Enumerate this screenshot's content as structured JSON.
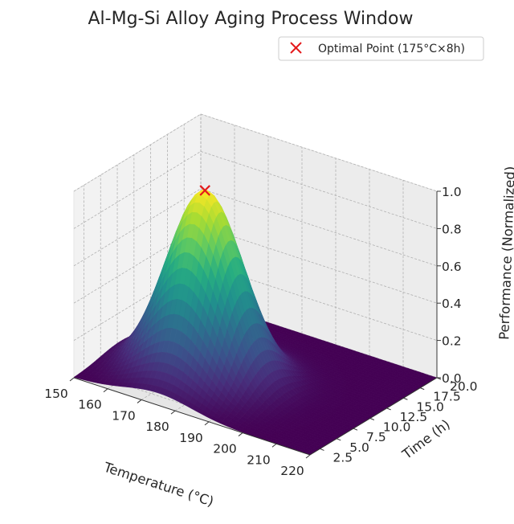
{
  "chart_data": {
    "type": "surface",
    "title": "Al-Mg-Si Alloy Aging Process Window",
    "xlabel": "Temperature (°C)",
    "ylabel": "Time (h)",
    "zlabel": "Performance (Normalized)",
    "xlim": [
      150,
      220
    ],
    "ylim": [
      1,
      20
    ],
    "zlim": [
      0,
      1
    ],
    "x_ticks": [
      "150",
      "160",
      "170",
      "180",
      "190",
      "200",
      "210",
      "220"
    ],
    "y_ticks": [
      "2.5",
      "5.0",
      "7.5",
      "10.0",
      "12.5",
      "15.0",
      "17.5",
      "20.0"
    ],
    "z_ticks": [
      "0.0",
      "0.2",
      "0.4",
      "0.6",
      "0.8",
      "1.0"
    ],
    "surface": {
      "function": "gaussian",
      "peak": {
        "temperature": 175,
        "time": 8,
        "performance": 1.0
      },
      "sigma_temperature": 10,
      "sigma_time": 3,
      "colormap": "viridis"
    },
    "marker": {
      "temperature": 175,
      "time": 8,
      "performance": 1.0,
      "symbol": "x",
      "color": "#e41a1c"
    },
    "legend": {
      "placement": "top-right",
      "entries": [
        "Optimal Point (175°C×8h)"
      ]
    },
    "grid": true
  }
}
